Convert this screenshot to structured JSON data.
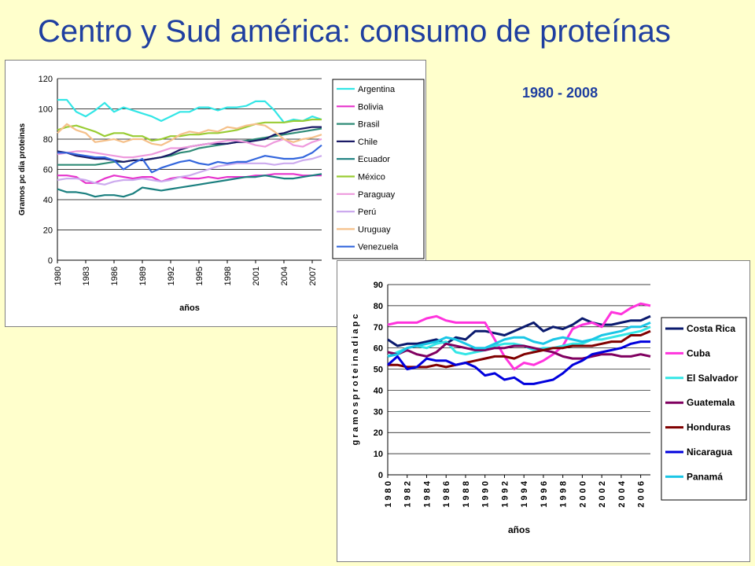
{
  "slide": {
    "title": "Centro y Sud américa: consumo de proteínas",
    "period": "1980 - 2008"
  },
  "chart_data": [
    {
      "type": "line",
      "ylabel": "Gramos pc dia proteinas",
      "xlabel": "años",
      "ylim": [
        0,
        120
      ],
      "yticks": [
        0,
        20,
        40,
        60,
        80,
        100,
        120
      ],
      "xlim": [
        1980,
        2008
      ],
      "xtick_labels": [
        "1980",
        "1983",
        "1986",
        "1989",
        "1992",
        "1995",
        "1998",
        "2001",
        "2004",
        "2007"
      ],
      "grid": "horizontal",
      "legend": "right",
      "x": [
        1980,
        1981,
        1982,
        1983,
        1984,
        1985,
        1986,
        1987,
        1988,
        1989,
        1990,
        1991,
        1992,
        1993,
        1994,
        1995,
        1996,
        1997,
        1998,
        1999,
        2000,
        2001,
        2002,
        2003,
        2004,
        2005,
        2006,
        2007,
        2008
      ],
      "series": [
        {
          "name": "Argentina",
          "color": "#33E6E6",
          "values": [
            106,
            106,
            98,
            95,
            99,
            104,
            98,
            101,
            99,
            97,
            95,
            92,
            95,
            98,
            98,
            101,
            101,
            99,
            101,
            101,
            102,
            105,
            105,
            99,
            91,
            93,
            92,
            95,
            93
          ]
        },
        {
          "name": "Bolivia",
          "color": "#E633CC",
          "values": [
            56,
            56,
            55,
            51,
            51,
            54,
            56,
            55,
            54,
            55,
            55,
            52,
            54,
            55,
            54,
            54,
            55,
            54,
            55,
            55,
            55,
            56,
            56,
            57,
            57,
            57,
            56,
            56,
            56
          ]
        },
        {
          "name": "Brasil",
          "color": "#2E8B77",
          "values": [
            63,
            63,
            63,
            63,
            63,
            64,
            65,
            65,
            66,
            66,
            67,
            68,
            69,
            71,
            72,
            74,
            75,
            76,
            77,
            78,
            79,
            80,
            81,
            82,
            83,
            84,
            85,
            86,
            87
          ]
        },
        {
          "name": "Chile",
          "color": "#1A1A66",
          "values": [
            72,
            71,
            69,
            68,
            67,
            67,
            66,
            65,
            66,
            66,
            67,
            68,
            70,
            73,
            75,
            76,
            77,
            77,
            77,
            78,
            78,
            79,
            80,
            83,
            84,
            86,
            87,
            88,
            88
          ]
        },
        {
          "name": "Ecuador",
          "color": "#1A7F7F",
          "values": [
            47,
            45,
            45,
            44,
            42,
            43,
            43,
            42,
            44,
            48,
            47,
            46,
            47,
            48,
            49,
            50,
            51,
            52,
            53,
            54,
            55,
            55,
            56,
            55,
            54,
            54,
            55,
            56,
            57
          ]
        },
        {
          "name": "México",
          "color": "#99CC33",
          "values": [
            86,
            88,
            89,
            87,
            85,
            82,
            84,
            84,
            82,
            82,
            79,
            80,
            82,
            82,
            83,
            83,
            84,
            84,
            85,
            86,
            88,
            90,
            91,
            91,
            91,
            92,
            92,
            93,
            93
          ]
        },
        {
          "name": "Paraguay",
          "color": "#EE99DD",
          "values": [
            70,
            71,
            72,
            72,
            71,
            70,
            69,
            68,
            68,
            69,
            70,
            72,
            74,
            74,
            75,
            76,
            77,
            78,
            79,
            79,
            78,
            76,
            75,
            78,
            80,
            76,
            75,
            78,
            80
          ]
        },
        {
          "name": "Perú",
          "color": "#CCAAEE",
          "values": [
            53,
            54,
            54,
            53,
            51,
            50,
            52,
            53,
            53,
            54,
            53,
            52,
            53,
            55,
            56,
            58,
            60,
            62,
            63,
            64,
            64,
            64,
            64,
            63,
            64,
            64,
            66,
            67,
            69
          ]
        },
        {
          "name": "Uruguay",
          "color": "#F5C08A",
          "values": [
            84,
            90,
            86,
            84,
            78,
            79,
            80,
            78,
            80,
            80,
            77,
            76,
            79,
            83,
            85,
            84,
            86,
            85,
            88,
            87,
            89,
            90,
            89,
            85,
            80,
            78,
            80,
            81,
            83
          ]
        },
        {
          "name": "Venezuela",
          "color": "#3366DD",
          "values": [
            71,
            71,
            70,
            69,
            68,
            68,
            66,
            60,
            64,
            67,
            58,
            61,
            63,
            65,
            66,
            64,
            63,
            65,
            64,
            65,
            65,
            67,
            69,
            68,
            67,
            67,
            68,
            71,
            76
          ]
        }
      ]
    },
    {
      "type": "line",
      "ylabel": "g r a m o s   p r o t e i n a   d i a   p c",
      "xlabel": "años",
      "ylim": [
        0,
        90
      ],
      "yticks": [
        0,
        10,
        20,
        30,
        40,
        50,
        60,
        70,
        80,
        90
      ],
      "xlim": [
        1980,
        2007
      ],
      "xtick_labels": [
        "1 9 8 0",
        "1 9 8 2",
        "1 9 8 4",
        "1 9 8 6",
        "1 9 8 8",
        "1 9 9 0",
        "1 9 9 2",
        "1 9 9 4",
        "1 9 9 6",
        "1 9 9 8",
        "2 0 0 0",
        "2 0 0 2",
        "2 0 0 4",
        "2 0 0 6"
      ],
      "grid": "horizontal",
      "legend": "right",
      "x": [
        1980,
        1981,
        1982,
        1983,
        1984,
        1985,
        1986,
        1987,
        1988,
        1989,
        1990,
        1991,
        1992,
        1993,
        1994,
        1995,
        1996,
        1997,
        1998,
        1999,
        2000,
        2001,
        2002,
        2003,
        2004,
        2005,
        2006,
        2007
      ],
      "series": [
        {
          "name": "Costa Rica",
          "color": "#0A1A6E",
          "values": [
            64,
            61,
            62,
            62,
            63,
            64,
            62,
            65,
            64,
            68,
            68,
            67,
            66,
            68,
            70,
            72,
            68,
            70,
            69,
            71,
            74,
            72,
            71,
            71,
            72,
            73,
            73,
            75
          ]
        },
        {
          "name": "Cuba",
          "color": "#FF33DD",
          "values": [
            71,
            72,
            72,
            72,
            74,
            75,
            73,
            72,
            72,
            72,
            72,
            64,
            56,
            50,
            53,
            52,
            54,
            57,
            61,
            69,
            71,
            72,
            70,
            77,
            76,
            79,
            81,
            80
          ]
        },
        {
          "name": "El Salvador",
          "color": "#33E6E6",
          "values": [
            56,
            58,
            60,
            61,
            60,
            62,
            63,
            58,
            57,
            58,
            59,
            61,
            62,
            62,
            61,
            59,
            60,
            60,
            61,
            62,
            62,
            64,
            64,
            65,
            66,
            67,
            68,
            70
          ]
        },
        {
          "name": "Guatemala",
          "color": "#800060",
          "values": [
            58,
            57,
            59,
            57,
            56,
            58,
            62,
            61,
            60,
            59,
            59,
            60,
            60,
            61,
            61,
            60,
            59,
            58,
            56,
            55,
            55,
            56,
            57,
            57,
            56,
            56,
            57,
            56
          ]
        },
        {
          "name": "Honduras",
          "color": "#800000",
          "values": [
            52,
            52,
            51,
            51,
            51,
            52,
            51,
            52,
            53,
            54,
            55,
            56,
            56,
            55,
            57,
            58,
            59,
            60,
            60,
            61,
            61,
            61,
            62,
            63,
            63,
            66,
            66,
            68
          ]
        },
        {
          "name": "Nicaragua",
          "color": "#0000DD",
          "values": [
            52,
            56,
            50,
            51,
            55,
            54,
            54,
            52,
            53,
            51,
            47,
            48,
            45,
            46,
            43,
            43,
            44,
            45,
            48,
            52,
            54,
            57,
            58,
            59,
            60,
            62,
            63,
            63
          ]
        },
        {
          "name": "Panamá",
          "color": "#1AC6E6",
          "values": [
            56,
            57,
            60,
            61,
            62,
            63,
            65,
            64,
            62,
            60,
            60,
            62,
            64,
            65,
            65,
            63,
            62,
            64,
            65,
            64,
            63,
            64,
            66,
            67,
            68,
            70,
            70,
            72
          ]
        }
      ]
    }
  ]
}
